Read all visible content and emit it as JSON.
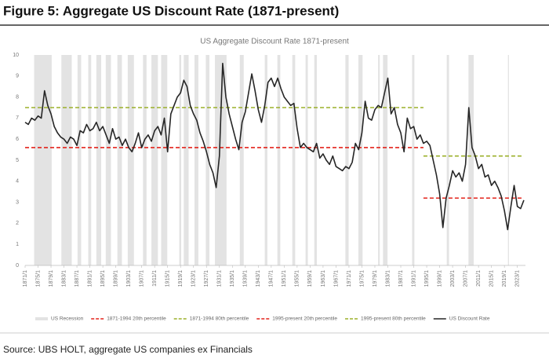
{
  "header": "Figure 5: Aggregate US Discount Rate (1871-present)",
  "source": "Source: UBS HOLT, aggregate US companies ex Financials",
  "chart_data": {
    "type": "line",
    "title": "US Aggregate Discount Rate 1871-present",
    "x": [
      1871,
      1872,
      1873,
      1874,
      1875,
      1876,
      1877,
      1878,
      1879,
      1880,
      1881,
      1882,
      1883,
      1884,
      1885,
      1886,
      1887,
      1888,
      1889,
      1890,
      1891,
      1892,
      1893,
      1894,
      1895,
      1896,
      1897,
      1898,
      1899,
      1900,
      1901,
      1902,
      1903,
      1904,
      1905,
      1906,
      1907,
      1908,
      1909,
      1910,
      1911,
      1912,
      1913,
      1914,
      1915,
      1916,
      1917,
      1918,
      1919,
      1920,
      1921,
      1922,
      1923,
      1924,
      1925,
      1926,
      1927,
      1928,
      1929,
      1930,
      1931,
      1932,
      1933,
      1934,
      1935,
      1936,
      1937,
      1938,
      1939,
      1940,
      1941,
      1942,
      1943,
      1944,
      1945,
      1946,
      1947,
      1948,
      1949,
      1950,
      1951,
      1952,
      1953,
      1954,
      1955,
      1956,
      1957,
      1958,
      1959,
      1960,
      1961,
      1962,
      1963,
      1964,
      1965,
      1966,
      1967,
      1968,
      1969,
      1970,
      1971,
      1972,
      1973,
      1974,
      1975,
      1976,
      1977,
      1978,
      1979,
      1980,
      1981,
      1982,
      1983,
      1984,
      1985,
      1986,
      1987,
      1988,
      1989,
      1990,
      1991,
      1992,
      1993,
      1994,
      1995,
      1996,
      1997,
      1998,
      1999,
      2000,
      2001,
      2002,
      2003,
      2004,
      2005,
      2006,
      2007,
      2008,
      2009,
      2010,
      2011,
      2012,
      2013,
      2014,
      2015,
      2016,
      2017,
      2018,
      2019,
      2020,
      2021,
      2022,
      2023,
      2024,
      2025
    ],
    "series": [
      {
        "name": "US Discount Rate",
        "color": "#262626",
        "values": [
          6.8,
          6.7,
          7.0,
          6.9,
          7.1,
          7.0,
          8.3,
          7.6,
          7.2,
          6.6,
          6.3,
          6.1,
          6.0,
          5.8,
          6.1,
          6.0,
          5.7,
          6.4,
          6.3,
          6.7,
          6.4,
          6.5,
          6.8,
          6.4,
          6.6,
          6.2,
          5.8,
          6.5,
          6.0,
          6.1,
          5.7,
          6.0,
          5.6,
          5.4,
          5.8,
          6.3,
          5.6,
          6.0,
          6.2,
          5.9,
          6.4,
          6.6,
          6.2,
          7.0,
          5.4,
          7.2,
          7.6,
          8.0,
          8.2,
          8.8,
          8.5,
          7.6,
          7.2,
          6.9,
          6.3,
          5.9,
          5.4,
          4.8,
          4.4,
          3.7,
          5.2,
          9.6,
          8.0,
          7.2,
          6.6,
          6.0,
          5.5,
          6.8,
          7.3,
          8.2,
          9.1,
          8.3,
          7.4,
          6.8,
          7.6,
          8.7,
          8.9,
          8.5,
          8.9,
          8.4,
          8.0,
          7.8,
          7.6,
          7.7,
          6.5,
          5.6,
          5.8,
          5.6,
          5.5,
          5.4,
          5.8,
          5.1,
          5.3,
          5.0,
          4.8,
          5.2,
          4.7,
          4.6,
          4.5,
          4.7,
          4.6,
          4.9,
          5.8,
          5.5,
          6.3,
          7.8,
          7.0,
          6.9,
          7.4,
          7.6,
          7.5,
          8.2,
          8.9,
          7.2,
          7.5,
          6.7,
          6.3,
          5.4,
          7.0,
          6.5,
          6.6,
          6.0,
          6.2,
          5.8,
          5.9,
          5.7,
          5.0,
          4.3,
          3.4,
          1.8,
          3.2,
          3.8,
          4.5,
          4.2,
          4.4,
          4.0,
          4.8,
          7.5,
          5.6,
          5.2,
          4.6,
          4.8,
          4.2,
          4.3,
          3.8,
          4.0,
          3.7,
          3.3,
          2.6,
          1.7,
          2.8,
          3.8,
          2.8,
          2.7,
          3.1
        ]
      }
    ],
    "reference_lines": [
      {
        "name": "1871-1994 20th percentile",
        "color": "#e3231b",
        "from": 1871,
        "to": 1994,
        "value": 5.6
      },
      {
        "name": "1871-1994 80th percentile",
        "color": "#9bb02a",
        "from": 1871,
        "to": 1994,
        "value": 7.5
      },
      {
        "name": "1995-present 20th percentile",
        "color": "#e3231b",
        "from": 1994,
        "to": 2025,
        "value": 3.2
      },
      {
        "name": "1995-present 80th percentile",
        "color": "#9bb02a",
        "from": 1994,
        "to": 2025,
        "value": 5.2
      }
    ],
    "recessions": {
      "name": "US Recession",
      "color": "#e3e3e3",
      "periods": [
        [
          1873.8,
          1879.2
        ],
        [
          1882.2,
          1885.4
        ],
        [
          1887.2,
          1888.3
        ],
        [
          1890.5,
          1891.4
        ],
        [
          1893,
          1894.5
        ],
        [
          1895.9,
          1897.5
        ],
        [
          1899.5,
          1900.9
        ],
        [
          1902.7,
          1904.6
        ],
        [
          1907.4,
          1908.5
        ],
        [
          1910,
          1912
        ],
        [
          1913,
          1914.9
        ],
        [
          1918.6,
          1919.2
        ],
        [
          1920,
          1921.5
        ],
        [
          1923.3,
          1924.5
        ],
        [
          1926.8,
          1927.9
        ],
        [
          1929.6,
          1933.2
        ],
        [
          1937.3,
          1938.5
        ],
        [
          1945,
          1945.8
        ],
        [
          1948.9,
          1949.8
        ],
        [
          1953.5,
          1954.4
        ],
        [
          1957.6,
          1958.3
        ],
        [
          1960.3,
          1961.1
        ],
        [
          1969.9,
          1970.9
        ],
        [
          1973.9,
          1975.2
        ],
        [
          1980,
          1980.5
        ],
        [
          1981.5,
          1982.9
        ],
        [
          1990.5,
          1991.2
        ],
        [
          2001.2,
          2001.9
        ],
        [
          2007.9,
          2009.5
        ],
        [
          2020.1,
          2020.4
        ]
      ]
    },
    "xlim": [
      1871,
      2025.5
    ],
    "ylim": [
      0,
      10
    ],
    "yticks": [
      0,
      1,
      2,
      3,
      4,
      5,
      6,
      7,
      8,
      9,
      10
    ],
    "xticks": [
      {
        "value": 1871,
        "label": "1871/1"
      },
      {
        "value": 1875,
        "label": "1875/1"
      },
      {
        "value": 1879,
        "label": "1879/1"
      },
      {
        "value": 1883,
        "label": "1883/1"
      },
      {
        "value": 1887,
        "label": "1887/1"
      },
      {
        "value": 1891,
        "label": "1891/1"
      },
      {
        "value": 1895,
        "label": "1895/1"
      },
      {
        "value": 1899,
        "label": "1899/1"
      },
      {
        "value": 1903,
        "label": "1903/1"
      },
      {
        "value": 1907,
        "label": "1907/1"
      },
      {
        "value": 1911,
        "label": "1911/1"
      },
      {
        "value": 1915,
        "label": "1915/1"
      },
      {
        "value": 1919,
        "label": "1919/1"
      },
      {
        "value": 1923,
        "label": "1923/1"
      },
      {
        "value": 1927,
        "label": "1927/1"
      },
      {
        "value": 1931,
        "label": "1931/1"
      },
      {
        "value": 1935,
        "label": "1935/1"
      },
      {
        "value": 1939,
        "label": "1939/1"
      },
      {
        "value": 1943,
        "label": "1943/1"
      },
      {
        "value": 1947,
        "label": "1947/1"
      },
      {
        "value": 1951,
        "label": "1951/1"
      },
      {
        "value": 1955,
        "label": "1955/1"
      },
      {
        "value": 1959,
        "label": "1959/1"
      },
      {
        "value": 1963,
        "label": "1963/1"
      },
      {
        "value": 1967,
        "label": "1967/1"
      },
      {
        "value": 1971,
        "label": "1971/1"
      },
      {
        "value": 1975,
        "label": "1975/1"
      },
      {
        "value": 1979,
        "label": "1979/1"
      },
      {
        "value": 1983,
        "label": "1983/1"
      },
      {
        "value": 1987,
        "label": "1987/1"
      },
      {
        "value": 1991,
        "label": "1991/1"
      },
      {
        "value": 1995,
        "label": "1995/1"
      },
      {
        "value": 1999,
        "label": "1999/1"
      },
      {
        "value": 2003,
        "label": "2003/1"
      },
      {
        "value": 2007,
        "label": "2007/1"
      },
      {
        "value": 2011,
        "label": "2011/1"
      },
      {
        "value": 2015,
        "label": "2015/1"
      },
      {
        "value": 2019,
        "label": "2019/1"
      },
      {
        "value": 2023,
        "label": "2023/1"
      }
    ],
    "grid": false,
    "legend": "bottom"
  }
}
